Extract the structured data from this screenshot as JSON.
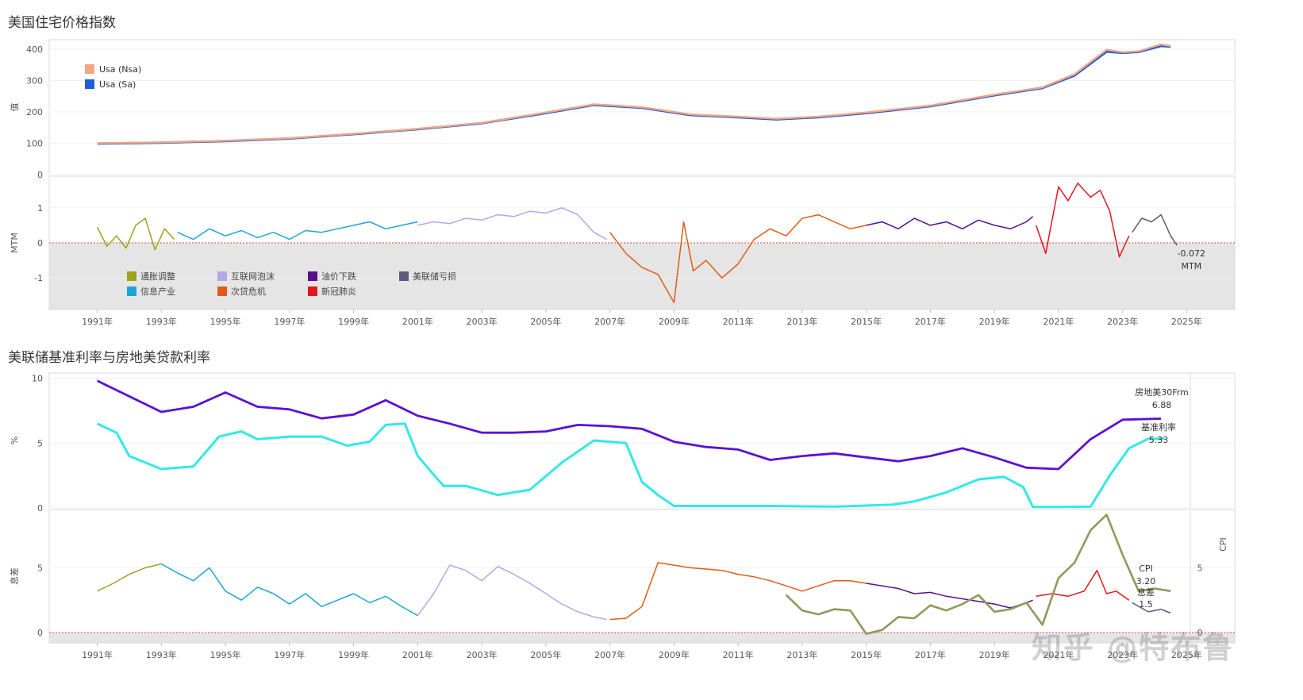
{
  "sections": {
    "top_title": "美国住宅价格指数",
    "bottom_title": "美联储基准利率与房地美贷款利率"
  },
  "watermark": "知乎 @特布鲁",
  "colors": {
    "nsa": "#f4a582",
    "sa": "#1f5fd6",
    "inflation_adj": "#9aa41c",
    "info_industry": "#1aa7d8",
    "dotcom": "#b4a7e6",
    "subprime": "#e25b16",
    "oil_drop": "#5c0f8c",
    "covid": "#e0181e",
    "fed_loss": "#5b5b7a",
    "frm30": "#5b10d6",
    "fed_rate": "#33e8e8",
    "cpi": "#8e9a5a",
    "negative_band": "#e5e5e5"
  },
  "chart_data": [
    {
      "id": "hpi",
      "type": "line",
      "title": "美国住宅价格指数",
      "ylabel": "值",
      "ylim": [
        0,
        430
      ],
      "yticks": [
        0,
        100,
        200,
        300,
        400
      ],
      "xlim": [
        1989.5,
        2026.5
      ],
      "legend": {
        "position": "top-left",
        "items": [
          "Usa (Nsa)",
          "Usa (Sa)"
        ]
      },
      "series": [
        {
          "name": "Usa (Nsa)",
          "x": [
            1991,
            1993,
            1995,
            1997,
            1999,
            2001,
            2003,
            2005,
            2006.5,
            2008,
            2009.5,
            2011,
            2012.2,
            2013.5,
            2015,
            2017,
            2019,
            2020.5,
            2021.5,
            2022.5,
            2023,
            2023.5,
            2024.2,
            2024.5
          ],
          "y": [
            100,
            103,
            108,
            116,
            130,
            146,
            165,
            198,
            224,
            215,
            192,
            185,
            178,
            185,
            198,
            220,
            255,
            278,
            320,
            398,
            390,
            393,
            415,
            410
          ]
        },
        {
          "name": "Usa (Sa)",
          "x": [
            1991,
            1993,
            1995,
            1997,
            1999,
            2001,
            2003,
            2005,
            2006.5,
            2008,
            2009.5,
            2011,
            2012.2,
            2013.5,
            2015,
            2017,
            2019,
            2020.5,
            2021.5,
            2022.5,
            2023,
            2023.5,
            2024.2,
            2024.5
          ],
          "y": [
            99,
            102,
            107,
            115,
            129,
            145,
            164,
            196,
            222,
            213,
            190,
            183,
            176,
            183,
            196,
            218,
            253,
            276,
            316,
            392,
            388,
            391,
            410,
            408
          ]
        }
      ]
    },
    {
      "id": "mtm",
      "type": "line",
      "ylabel": "MTM",
      "ylim": [
        -1.9,
        1.9
      ],
      "yticks": [
        -1,
        0,
        1
      ],
      "xlim": [
        1989.5,
        2026.5
      ],
      "xticks": [
        "1991年",
        "1993年",
        "1995年",
        "1997年",
        "1999年",
        "2001年",
        "2003年",
        "2005年",
        "2007年",
        "2009年",
        "2011年",
        "2013年",
        "2015年",
        "2017年",
        "2019年",
        "2021年",
        "2023年",
        "2025年"
      ],
      "legend": {
        "position": "bottom-left",
        "items": [
          "通胀调整",
          "信息产业",
          "互联网泡沫",
          "次贷危机",
          "油价下跌",
          "新冠肺炎",
          "美联储亏损"
        ]
      },
      "end_label": {
        "value": "-0.072",
        "unit": "MTM"
      },
      "series": [
        {
          "name": "通胀调整",
          "x": [
            1991,
            1991.3,
            1991.6,
            1991.9,
            1992.2,
            1992.5,
            1992.8,
            1993.1,
            1993.4
          ],
          "y": [
            0.45,
            -0.1,
            0.2,
            -0.15,
            0.5,
            0.7,
            -0.2,
            0.4,
            0.1
          ]
        },
        {
          "name": "信息产业",
          "x": [
            1993.5,
            1994,
            1994.5,
            1995,
            1995.5,
            1996,
            1996.5,
            1997,
            1997.5,
            1998,
            1998.5,
            1999,
            1999.5,
            2000,
            2000.5,
            2001
          ],
          "y": [
            0.3,
            0.1,
            0.4,
            0.2,
            0.35,
            0.15,
            0.3,
            0.1,
            0.35,
            0.3,
            0.4,
            0.5,
            0.6,
            0.4,
            0.5,
            0.6
          ]
        },
        {
          "name": "互联网泡沫",
          "x": [
            2001,
            2001.5,
            2002,
            2002.5,
            2003,
            2003.5,
            2004,
            2004.5,
            2005,
            2005.5,
            2006,
            2006.5,
            2006.9
          ],
          "y": [
            0.5,
            0.6,
            0.55,
            0.7,
            0.65,
            0.8,
            0.75,
            0.9,
            0.85,
            1.0,
            0.8,
            0.3,
            0.1
          ]
        },
        {
          "name": "次贷危机",
          "x": [
            2007,
            2007.5,
            2008,
            2008.5,
            2009,
            2009.3,
            2009.6,
            2010,
            2010.5,
            2011,
            2011.5,
            2012,
            2012.5,
            2013,
            2013.5,
            2014,
            2014.5,
            2015
          ],
          "y": [
            0.3,
            -0.3,
            -0.7,
            -0.9,
            -1.7,
            0.6,
            -0.8,
            -0.5,
            -1.0,
            -0.6,
            0.1,
            0.4,
            0.2,
            0.7,
            0.8,
            0.6,
            0.4,
            0.5
          ]
        },
        {
          "name": "油价下跌",
          "x": [
            2015,
            2015.5,
            2016,
            2016.5,
            2017,
            2017.5,
            2018,
            2018.5,
            2019,
            2019.5,
            2020,
            2020.2
          ],
          "y": [
            0.5,
            0.6,
            0.4,
            0.7,
            0.5,
            0.6,
            0.4,
            0.65,
            0.5,
            0.4,
            0.6,
            0.75
          ]
        },
        {
          "name": "新冠肺炎",
          "x": [
            2020.3,
            2020.6,
            2021,
            2021.3,
            2021.6,
            2022,
            2022.3,
            2022.6,
            2022.9,
            2023.2
          ],
          "y": [
            0.5,
            -0.3,
            1.6,
            1.2,
            1.7,
            1.3,
            1.5,
            0.9,
            -0.4,
            0.2
          ]
        },
        {
          "name": "美联储亏损",
          "x": [
            2023.3,
            2023.6,
            2023.9,
            2024.2,
            2024.5,
            2024.7
          ],
          "y": [
            0.3,
            0.7,
            0.6,
            0.8,
            0.2,
            -0.072
          ]
        }
      ]
    },
    {
      "id": "rates",
      "type": "line",
      "title": "美联储基准利率与房地美贷款利率",
      "ylabel": "%",
      "ylim": [
        0,
        10.4
      ],
      "yticks": [
        0,
        5,
        10
      ],
      "xlim": [
        1989.5,
        2026.5
      ],
      "series": [
        {
          "name": "房地美30Frm",
          "x": [
            1991,
            1992,
            1993,
            1994,
            1995,
            1996,
            1997,
            1998,
            1999,
            2000,
            2001,
            2002,
            2003,
            2004,
            2005,
            2006,
            2007,
            2008,
            2009,
            2010,
            2011,
            2012,
            2013,
            2014,
            2015,
            2016,
            2017,
            2018,
            2019,
            2020,
            2021,
            2022,
            2023,
            2024.2
          ],
          "y": [
            9.8,
            8.6,
            7.4,
            7.8,
            8.9,
            7.8,
            7.6,
            6.9,
            7.2,
            8.3,
            7.1,
            6.5,
            5.8,
            5.8,
            5.9,
            6.4,
            6.3,
            6.1,
            5.1,
            4.7,
            4.5,
            3.7,
            4.0,
            4.2,
            3.9,
            3.6,
            4.0,
            4.6,
            3.9,
            3.1,
            3.0,
            5.3,
            6.8,
            6.88
          ],
          "end_value": "6.88"
        },
        {
          "name": "基准利率",
          "x": [
            1991,
            1991.6,
            1992,
            1993,
            1994,
            1994.8,
            1995.5,
            1996,
            1997,
            1998,
            1998.8,
            1999.5,
            2000,
            2000.6,
            2001,
            2001.8,
            2002.5,
            2003.5,
            2004.5,
            2005.5,
            2006.5,
            2007.5,
            2008,
            2008.5,
            2009,
            2010,
            2012,
            2014,
            2015.8,
            2016.5,
            2017.5,
            2018.5,
            2019.3,
            2019.9,
            2020.2,
            2021,
            2022,
            2022.6,
            2023.2,
            2023.8,
            2024.3
          ],
          "y": [
            6.5,
            5.8,
            4.0,
            3.0,
            3.2,
            5.5,
            5.9,
            5.3,
            5.5,
            5.5,
            4.8,
            5.1,
            6.4,
            6.5,
            4.0,
            1.7,
            1.7,
            1.0,
            1.4,
            3.5,
            5.2,
            5.0,
            2.0,
            1.0,
            0.15,
            0.15,
            0.15,
            0.1,
            0.25,
            0.5,
            1.2,
            2.2,
            2.4,
            1.6,
            0.08,
            0.08,
            0.1,
            2.5,
            4.6,
            5.33,
            5.33
          ],
          "end_value": "5.33"
        }
      ]
    },
    {
      "id": "spread",
      "type": "line",
      "ylabel": "息差",
      "ylabel_right": "CPI",
      "ylim": [
        -0.8,
        9.5
      ],
      "yticks": [
        0,
        5
      ],
      "yticks_right": [
        0,
        5
      ],
      "xlim": [
        1989.5,
        2026.5
      ],
      "xticks": [
        "1991年",
        "1993年",
        "1995年",
        "1997年",
        "1999年",
        "2001年",
        "2003年",
        "2005年",
        "2007年",
        "2009年",
        "2011年",
        "2013年",
        "2015年",
        "2017年",
        "2019年",
        "2021年",
        "2023年",
        "2025年"
      ],
      "annotations": [
        {
          "label": "CPI",
          "value": "3.20"
        },
        {
          "label": "息差",
          "value": "1.5"
        }
      ],
      "series": [
        {
          "name": "息差-通胀调整",
          "x": [
            1991,
            1991.5,
            1992,
            1992.5,
            1993
          ],
          "y": [
            3.2,
            3.8,
            4.5,
            5.0,
            5.3
          ]
        },
        {
          "name": "息差-信息产业",
          "x": [
            1993,
            1993.5,
            1994,
            1994.5,
            1995,
            1995.5,
            1996,
            1996.5,
            1997,
            1997.5,
            1998,
            1998.5,
            1999,
            1999.5,
            2000,
            2000.5,
            2001
          ],
          "y": [
            5.3,
            4.6,
            4.0,
            5.0,
            3.2,
            2.5,
            3.5,
            3.0,
            2.2,
            3.0,
            2.0,
            2.5,
            3.0,
            2.3,
            2.8,
            2.0,
            1.3
          ]
        },
        {
          "name": "息差-互联网泡沫",
          "x": [
            2001,
            2001.5,
            2002,
            2002.5,
            2003,
            2003.5,
            2004,
            2004.5,
            2005,
            2005.5,
            2006,
            2006.5,
            2006.9
          ],
          "y": [
            1.3,
            3.0,
            5.2,
            4.8,
            4.0,
            5.1,
            4.5,
            3.8,
            3.0,
            2.2,
            1.6,
            1.2,
            1.0
          ]
        },
        {
          "name": "息差-次贷危机",
          "x": [
            2007,
            2007.5,
            2008,
            2008.5,
            2009,
            2009.5,
            2010,
            2010.5,
            2011,
            2011.5,
            2012,
            2012.5,
            2013,
            2013.5,
            2014,
            2014.5,
            2015
          ],
          "y": [
            1.0,
            1.1,
            2.0,
            5.4,
            5.2,
            5.0,
            4.9,
            4.8,
            4.5,
            4.3,
            4.0,
            3.6,
            3.2,
            3.6,
            4.0,
            4.0,
            3.8
          ]
        },
        {
          "name": "息差-油价下跌",
          "x": [
            2015,
            2015.5,
            2016,
            2016.5,
            2017,
            2017.5,
            2018,
            2018.5,
            2019,
            2019.5,
            2020,
            2020.2
          ],
          "y": [
            3.8,
            3.6,
            3.4,
            3.0,
            3.1,
            2.8,
            2.6,
            2.4,
            2.2,
            1.9,
            2.3,
            2.5
          ]
        },
        {
          "name": "息差-新冠肺炎",
          "x": [
            2020.3,
            2020.8,
            2021.3,
            2021.8,
            2022.2,
            2022.5,
            2022.8,
            2023.2
          ],
          "y": [
            2.8,
            3.0,
            2.8,
            3.2,
            4.8,
            3.0,
            3.2,
            2.5
          ]
        },
        {
          "name": "息差-美联储亏损",
          "x": [
            2023.3,
            2023.8,
            2024.2,
            2024.5
          ],
          "y": [
            2.3,
            1.6,
            1.8,
            1.5
          ]
        },
        {
          "name": "CPI",
          "x": [
            2012.5,
            2013,
            2013.5,
            2014,
            2014.5,
            2015,
            2015.5,
            2016,
            2016.5,
            2017,
            2017.5,
            2018,
            2018.5,
            2019,
            2019.5,
            2020,
            2020.5,
            2021,
            2021.5,
            2022,
            2022.5,
            2023,
            2023.5,
            2024,
            2024.5
          ],
          "y": [
            2.9,
            1.7,
            1.4,
            1.8,
            1.7,
            -0.1,
            0.2,
            1.2,
            1.1,
            2.1,
            1.7,
            2.2,
            2.9,
            1.6,
            1.8,
            2.3,
            0.6,
            4.2,
            5.4,
            7.9,
            9.1,
            6.0,
            3.2,
            3.4,
            3.2
          ]
        }
      ]
    }
  ]
}
